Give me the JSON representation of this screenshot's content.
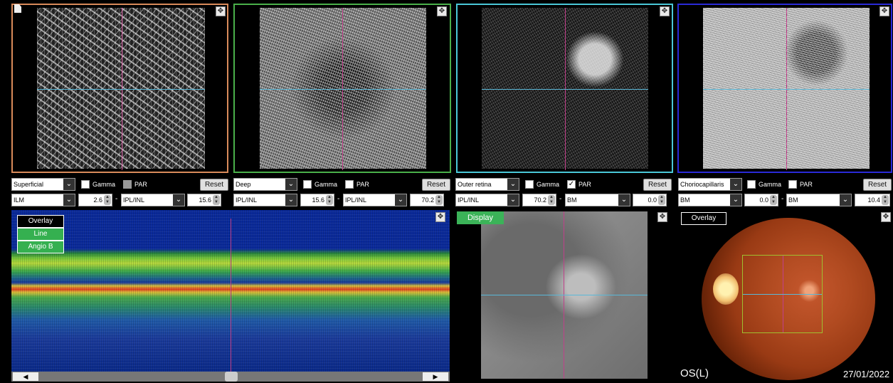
{
  "panes": [
    {
      "name": "superficial",
      "border_color": "#d98a5a"
    },
    {
      "name": "deep",
      "border_color": "#4ab04a"
    },
    {
      "name": "outer-retina",
      "border_color": "#4ac8d8"
    },
    {
      "name": "choriocapillaris",
      "border_color": "#2a2ad8"
    }
  ],
  "controls": [
    {
      "layer": "Superficial",
      "gamma_label": "Gamma",
      "par_label": "PAR",
      "par_checked": "",
      "reset_label": "Reset",
      "upper_seg": "ILM",
      "upper_val": "2.6",
      "lower_seg": "IPL/INL",
      "lower_val": "15.6"
    },
    {
      "layer": "Deep",
      "gamma_label": "Gamma",
      "par_label": "PAR",
      "par_checked": "",
      "reset_label": "Reset",
      "upper_seg": "IPL/INL",
      "upper_val": "15.6",
      "lower_seg": "IPL/INL",
      "lower_val": "70.2"
    },
    {
      "layer": "Outer retina",
      "gamma_label": "Gamma",
      "par_label": "PAR",
      "par_checked": "✓",
      "reset_label": "Reset",
      "upper_seg": "IPL/INL",
      "upper_val": "70.2",
      "lower_seg": "BM",
      "lower_val": "0.0"
    },
    {
      "layer": "Choriocapillaris",
      "gamma_label": "Gamma",
      "par_label": "PAR",
      "par_checked": "",
      "reset_label": "Reset",
      "upper_seg": "BM",
      "upper_val": "0.0",
      "lower_seg": "BM",
      "lower_val": "10.4"
    }
  ],
  "dash": "-",
  "bscan_menu": {
    "overlay": "Overlay",
    "line": "Line",
    "angio_b": "Angio B"
  },
  "display_label": "Display",
  "fundus": {
    "overlay": "Overlay",
    "eye": "OS(L)",
    "date": "27/01/2022"
  },
  "icons": {
    "expand": "expand-icon",
    "dropdown": "chevron-down-icon",
    "scroll_left": "scroll-left-icon",
    "scroll_right": "scroll-right-icon",
    "document": "document-icon"
  },
  "colors": {
    "crosshair_vertical": "#c0408a",
    "crosshair_horizontal": "#5ab8d8",
    "display_green": "#3bb358"
  }
}
